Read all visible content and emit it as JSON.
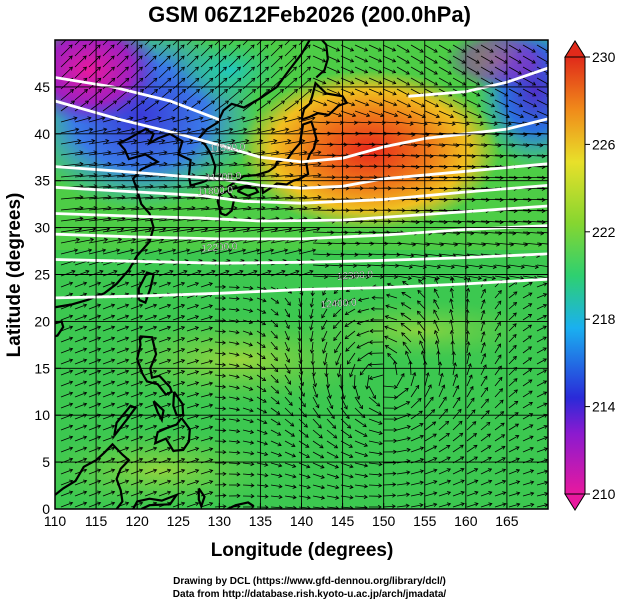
{
  "title": "GSM 06Z12Feb2026 (200.0hPa)",
  "chart_data": {
    "type": "heatmap",
    "title": "GSM 06Z12Feb2026 (200.0hPa)",
    "xlabel": "Longitude (degrees)",
    "ylabel": "Latitude  (degrees)",
    "xlim": [
      110,
      170
    ],
    "ylim": [
      0,
      50
    ],
    "x_ticks": [
      "110",
      "115",
      "120",
      "125",
      "130",
      "135",
      "140",
      "145",
      "150",
      "155",
      "160",
      "165"
    ],
    "y_ticks": [
      "0",
      "5",
      "10",
      "15",
      "20",
      "25",
      "30",
      "35",
      "40",
      "45"
    ],
    "colorbar": {
      "min": 210,
      "max": 230,
      "ticks": [
        "210",
        "214",
        "218",
        "222",
        "226",
        "230"
      ],
      "colors": [
        "#e8199e",
        "#2a2ad8",
        "#1ab0f0",
        "#2ed070",
        "#86d630",
        "#e8e02a",
        "#f08a1a",
        "#e02a1a"
      ]
    },
    "contours": [
      {
        "label": "11500.0",
        "lon": 131.0,
        "lat": 38.6
      },
      {
        "label": "11700.0",
        "lon": 130.5,
        "lat": 35.5
      },
      {
        "label": "11800.0",
        "lon": 129.5,
        "lat": 34.0
      },
      {
        "label": "12200.0",
        "lon": 130.0,
        "lat": 28.0
      },
      {
        "label": "12300.0",
        "lon": 146.5,
        "lat": 25.0
      },
      {
        "label": "12400.0",
        "lon": 144.5,
        "lat": 22.0
      }
    ],
    "grid": true,
    "wind_vectors": true,
    "coastlines": true
  },
  "credits": {
    "drawing": "Drawing by DCL (https://www.gfd-dennou.org/library/dcl/)",
    "data": "Data from http://database.rish.kyoto-u.ac.jp/arch/jmadata/"
  }
}
